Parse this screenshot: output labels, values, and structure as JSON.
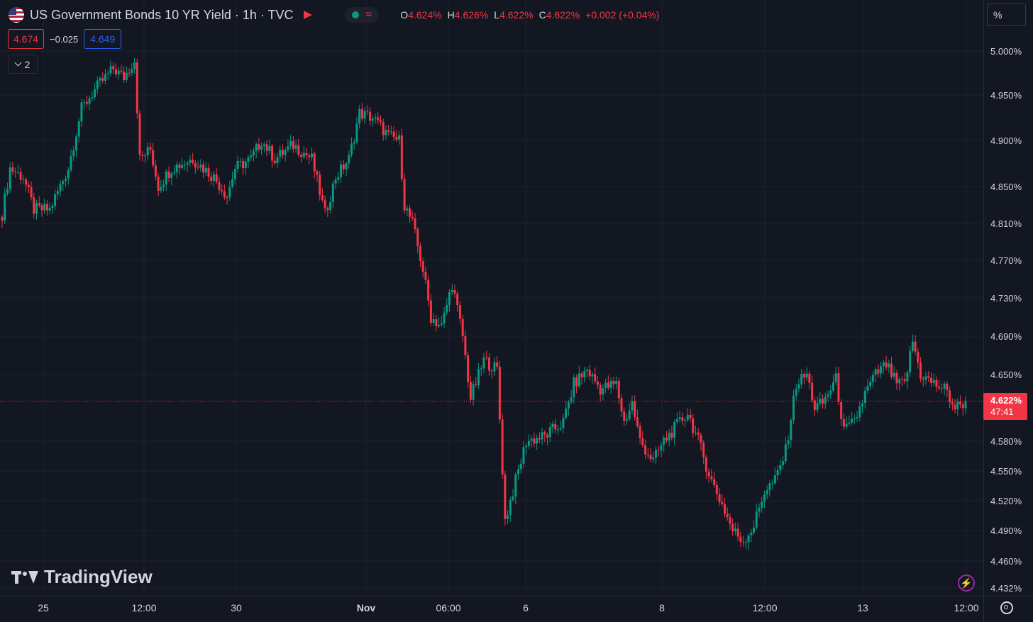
{
  "header": {
    "symbol_title": "US Government Bonds 10 YR Yield · 1h · TVC",
    "wave_glyph": "≈",
    "ohlc": [
      {
        "k": "O",
        "v": "4.624%"
      },
      {
        "k": "H",
        "v": "4.626%"
      },
      {
        "k": "L",
        "v": "4.622%"
      },
      {
        "k": "C",
        "v": "4.622%"
      },
      {
        "k": "",
        "v": "+0.002 (+0.04%)"
      }
    ]
  },
  "quote": {
    "bid": "4.674",
    "spread": "−0.025",
    "ask": "4.649"
  },
  "indicators_count": "2",
  "unit_label": "%",
  "brand": "TradingView",
  "current_price": {
    "label": "4.622%",
    "countdown": "47:41",
    "value": 4.622
  },
  "colors": {
    "bg": "#131722",
    "up": "#089981",
    "down": "#f23645",
    "grid": "#1e222d",
    "text": "#d1d4dc"
  },
  "chart_data": {
    "type": "candlestick",
    "title": "US Government Bonds 10 YR Yield · 1h · TVC",
    "y_ticks": [
      "5.000%",
      "4.950%",
      "4.900%",
      "4.850%",
      "4.810%",
      "4.770%",
      "4.730%",
      "4.690%",
      "4.650%",
      "4.580%",
      "4.550%",
      "4.520%",
      "4.490%",
      "4.460%",
      "4.432%"
    ],
    "y_tick_values": [
      5.0,
      4.95,
      4.9,
      4.85,
      4.81,
      4.77,
      4.73,
      4.69,
      4.65,
      4.58,
      4.55,
      4.52,
      4.49,
      4.46,
      4.432
    ],
    "x_ticks": [
      "25",
      "12:00",
      "30",
      "Nov",
      "06:00",
      "6",
      "8",
      "12:00",
      "13",
      "12:00"
    ],
    "grid": true,
    "close_path": [
      {
        "i": 0,
        "v": 4.82
      },
      {
        "i": 3,
        "v": 4.87
      },
      {
        "i": 8,
        "v": 4.86
      },
      {
        "i": 12,
        "v": 4.825
      },
      {
        "i": 18,
        "v": 4.825
      },
      {
        "i": 25,
        "v": 4.87
      },
      {
        "i": 30,
        "v": 4.935
      },
      {
        "i": 36,
        "v": 4.96
      },
      {
        "i": 42,
        "v": 4.98
      },
      {
        "i": 46,
        "v": 4.97
      },
      {
        "i": 50,
        "v": 4.99
      },
      {
        "i": 52,
        "v": 4.88
      },
      {
        "i": 56,
        "v": 4.89
      },
      {
        "i": 59,
        "v": 4.85
      },
      {
        "i": 64,
        "v": 4.87
      },
      {
        "i": 72,
        "v": 4.88
      },
      {
        "i": 80,
        "v": 4.86
      },
      {
        "i": 85,
        "v": 4.84
      },
      {
        "i": 88,
        "v": 4.87
      },
      {
        "i": 94,
        "v": 4.88
      },
      {
        "i": 98,
        "v": 4.9
      },
      {
        "i": 103,
        "v": 4.88
      },
      {
        "i": 110,
        "v": 4.895
      },
      {
        "i": 117,
        "v": 4.88
      },
      {
        "i": 122,
        "v": 4.82
      },
      {
        "i": 126,
        "v": 4.86
      },
      {
        "i": 131,
        "v": 4.88
      },
      {
        "i": 135,
        "v": 4.93
      },
      {
        "i": 140,
        "v": 4.925
      },
      {
        "i": 146,
        "v": 4.905
      },
      {
        "i": 150,
        "v": 4.9
      },
      {
        "i": 152,
        "v": 4.83
      },
      {
        "i": 155,
        "v": 4.81
      },
      {
        "i": 159,
        "v": 4.76
      },
      {
        "i": 162,
        "v": 4.71
      },
      {
        "i": 166,
        "v": 4.7
      },
      {
        "i": 170,
        "v": 4.745
      },
      {
        "i": 174,
        "v": 4.69
      },
      {
        "i": 177,
        "v": 4.625
      },
      {
        "i": 182,
        "v": 4.665
      },
      {
        "i": 187,
        "v": 4.655
      },
      {
        "i": 190,
        "v": 4.5
      },
      {
        "i": 194,
        "v": 4.54
      },
      {
        "i": 198,
        "v": 4.58
      },
      {
        "i": 205,
        "v": 4.585
      },
      {
        "i": 212,
        "v": 4.6
      },
      {
        "i": 216,
        "v": 4.64
      },
      {
        "i": 221,
        "v": 4.655
      },
      {
        "i": 226,
        "v": 4.635
      },
      {
        "i": 232,
        "v": 4.64
      },
      {
        "i": 235,
        "v": 4.6
      },
      {
        "i": 238,
        "v": 4.62
      },
      {
        "i": 241,
        "v": 4.58
      },
      {
        "i": 246,
        "v": 4.56
      },
      {
        "i": 250,
        "v": 4.58
      },
      {
        "i": 256,
        "v": 4.6
      },
      {
        "i": 259,
        "v": 4.61
      },
      {
        "i": 263,
        "v": 4.58
      },
      {
        "i": 268,
        "v": 4.54
      },
      {
        "i": 273,
        "v": 4.51
      },
      {
        "i": 276,
        "v": 4.49
      },
      {
        "i": 280,
        "v": 4.48
      },
      {
        "i": 284,
        "v": 4.495
      },
      {
        "i": 288,
        "v": 4.53
      },
      {
        "i": 292,
        "v": 4.54
      },
      {
        "i": 296,
        "v": 4.57
      },
      {
        "i": 300,
        "v": 4.64
      },
      {
        "i": 304,
        "v": 4.65
      },
      {
        "i": 307,
        "v": 4.615
      },
      {
        "i": 310,
        "v": 4.62
      },
      {
        "i": 315,
        "v": 4.645
      },
      {
        "i": 318,
        "v": 4.59
      },
      {
        "i": 322,
        "v": 4.6
      },
      {
        "i": 326,
        "v": 4.63
      },
      {
        "i": 330,
        "v": 4.65
      },
      {
        "i": 334,
        "v": 4.66
      },
      {
        "i": 338,
        "v": 4.64
      },
      {
        "i": 341,
        "v": 4.64
      },
      {
        "i": 344,
        "v": 4.685
      },
      {
        "i": 347,
        "v": 4.65
      },
      {
        "i": 352,
        "v": 4.64
      },
      {
        "i": 356,
        "v": 4.635
      },
      {
        "i": 360,
        "v": 4.615
      },
      {
        "i": 364,
        "v": 4.622
      }
    ]
  }
}
